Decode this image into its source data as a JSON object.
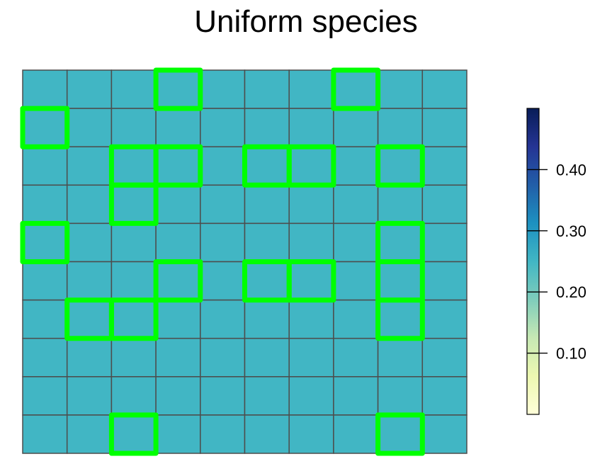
{
  "chart_data": {
    "type": "heatmap",
    "title": "Uniform species",
    "xlabel": "",
    "ylabel": "",
    "grid": true,
    "rows": 10,
    "cols": 10,
    "values": [
      [
        0.25,
        0.25,
        0.25,
        0.25,
        0.25,
        0.25,
        0.25,
        0.25,
        0.25,
        0.25
      ],
      [
        0.25,
        0.25,
        0.25,
        0.25,
        0.25,
        0.25,
        0.25,
        0.25,
        0.25,
        0.25
      ],
      [
        0.25,
        0.25,
        0.25,
        0.25,
        0.25,
        0.25,
        0.25,
        0.25,
        0.25,
        0.25
      ],
      [
        0.25,
        0.25,
        0.25,
        0.25,
        0.25,
        0.25,
        0.25,
        0.25,
        0.25,
        0.25
      ],
      [
        0.25,
        0.25,
        0.25,
        0.25,
        0.25,
        0.25,
        0.25,
        0.25,
        0.25,
        0.25
      ],
      [
        0.25,
        0.25,
        0.25,
        0.25,
        0.25,
        0.25,
        0.25,
        0.25,
        0.25,
        0.25
      ],
      [
        0.25,
        0.25,
        0.25,
        0.25,
        0.25,
        0.25,
        0.25,
        0.25,
        0.25,
        0.25
      ],
      [
        0.25,
        0.25,
        0.25,
        0.25,
        0.25,
        0.25,
        0.25,
        0.25,
        0.25,
        0.25
      ],
      [
        0.25,
        0.25,
        0.25,
        0.25,
        0.25,
        0.25,
        0.25,
        0.25,
        0.25,
        0.25
      ],
      [
        0.25,
        0.25,
        0.25,
        0.25,
        0.25,
        0.25,
        0.25,
        0.25,
        0.25,
        0.25
      ]
    ],
    "highlighted_cells": [
      [
        0,
        3
      ],
      [
        0,
        7
      ],
      [
        1,
        0
      ],
      [
        2,
        2
      ],
      [
        2,
        3
      ],
      [
        2,
        5
      ],
      [
        2,
        6
      ],
      [
        2,
        8
      ],
      [
        3,
        2
      ],
      [
        4,
        0
      ],
      [
        4,
        8
      ],
      [
        5,
        3
      ],
      [
        5,
        5
      ],
      [
        5,
        6
      ],
      [
        5,
        8
      ],
      [
        6,
        1
      ],
      [
        6,
        2
      ],
      [
        6,
        8
      ],
      [
        9,
        2
      ],
      [
        9,
        8
      ]
    ],
    "colorbar": {
      "range": [
        0.0,
        0.5
      ],
      "ticks": [
        0.1,
        0.2,
        0.3,
        0.4
      ],
      "tick_labels": [
        "0.10",
        "0.20",
        "0.30",
        "0.40"
      ],
      "colors": [
        "#ffffd9",
        "#edf8b1",
        "#c7e9b4",
        "#7fcdbb",
        "#41b6c4",
        "#1d91c0",
        "#225ea8",
        "#253494",
        "#081d58"
      ]
    },
    "colors": {
      "cell_border": "#4d4d4d",
      "highlight": "#00ff00"
    }
  }
}
